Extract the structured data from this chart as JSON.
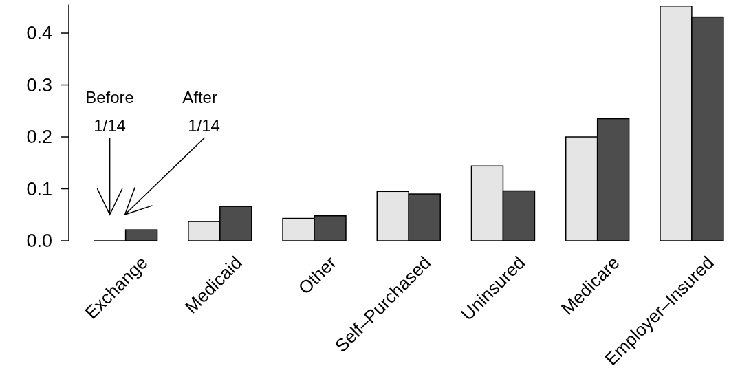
{
  "chart_data": {
    "type": "bar",
    "categories": [
      "Exchange",
      "Medicaid",
      "Other",
      "Self–Purchased",
      "Uninsured",
      "Medicare",
      "Employer–Insured"
    ],
    "series": [
      {
        "color": "#e5e5e5",
        "values": [
          0,
          0.037,
          0.043,
          0.095,
          0.144,
          0.2,
          0.452
        ]
      },
      {
        "color": "#4d4d4d",
        "values": [
          0.021,
          0.066,
          0.048,
          0.09,
          0.096,
          0.235,
          0.431
        ]
      }
    ],
    "ylim": [
      0,
      0.455
    ],
    "yticks": [
      {
        "value": 0,
        "label": "0.0"
      },
      0.1,
      0.2,
      0.3,
      0.4
    ],
    "annotations": [
      "Before\n1/14",
      "After\n1/14"
    ]
  }
}
